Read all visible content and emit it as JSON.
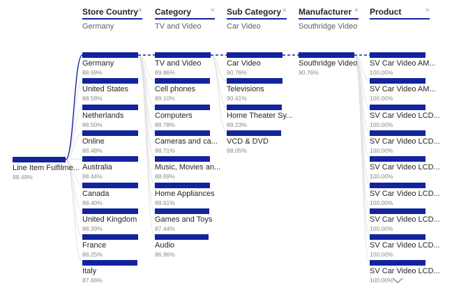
{
  "tree": {
    "root": {
      "label": "Line Item Fulfilme...",
      "value": "88.49%",
      "pct": 88.49
    },
    "columns": [
      {
        "title": "Store Country",
        "subtitle": "Germany",
        "close_glyph": "×",
        "nodes": [
          {
            "label": "Germany",
            "value": "88.69%",
            "pct": 88.69
          },
          {
            "label": "United States",
            "value": "88.58%",
            "pct": 88.58
          },
          {
            "label": "Netherlands",
            "value": "88.50%",
            "pct": 88.5
          },
          {
            "label": "Online",
            "value": "88.48%",
            "pct": 88.48
          },
          {
            "label": "Australia",
            "value": "88.44%",
            "pct": 88.44
          },
          {
            "label": "Canada",
            "value": "88.40%",
            "pct": 88.4
          },
          {
            "label": "United Kingdom",
            "value": "88.39%",
            "pct": 88.39
          },
          {
            "label": "France",
            "value": "88.25%",
            "pct": 88.25
          },
          {
            "label": "Italy",
            "value": "87.66%",
            "pct": 87.66
          }
        ]
      },
      {
        "title": "Category",
        "subtitle": "TV and Video",
        "close_glyph": "×",
        "nodes": [
          {
            "label": "TV and Video",
            "value": "89.86%",
            "pct": 89.86
          },
          {
            "label": "Cell phones",
            "value": "89.10%",
            "pct": 89.1
          },
          {
            "label": "Computers",
            "value": "88.78%",
            "pct": 88.78
          },
          {
            "label": "Cameras and ca...",
            "value": "88.71%",
            "pct": 88.71
          },
          {
            "label": "Music, Movies an...",
            "value": "88.69%",
            "pct": 88.69
          },
          {
            "label": "Home Appliances",
            "value": "88.61%",
            "pct": 88.61
          },
          {
            "label": "Games and Toys",
            "value": "87.44%",
            "pct": 87.44
          },
          {
            "label": "Audio",
            "value": "86.96%",
            "pct": 86.96
          }
        ]
      },
      {
        "title": "Sub Category",
        "subtitle": "Car Video",
        "close_glyph": "×",
        "nodes": [
          {
            "label": "Car Video",
            "value": "90.76%",
            "pct": 90.76
          },
          {
            "label": "Televisions",
            "value": "90.41%",
            "pct": 90.41
          },
          {
            "label": "Home Theater Sy...",
            "value": "89.23%",
            "pct": 89.23
          },
          {
            "label": "VCD & DVD",
            "value": "88.05%",
            "pct": 88.05
          }
        ]
      },
      {
        "title": "Manufacturer",
        "subtitle": "Southridge Video",
        "close_glyph": "×",
        "nodes": [
          {
            "label": "Southridge Video",
            "value": "90.76%",
            "pct": 90.76
          }
        ]
      },
      {
        "title": "Product",
        "subtitle": "",
        "close_glyph": "×",
        "nodes": [
          {
            "label": "SV Car Video AM...",
            "value": "100.00%",
            "pct": 100.0
          },
          {
            "label": "SV Car Video AM...",
            "value": "100.00%",
            "pct": 100.0
          },
          {
            "label": "SV Car Video LCD...",
            "value": "100.00%",
            "pct": 100.0
          },
          {
            "label": "SV Car Video LCD...",
            "value": "100.00%",
            "pct": 100.0
          },
          {
            "label": "SV Car Video LCD...",
            "value": "100.00%",
            "pct": 100.0
          },
          {
            "label": "SV Car Video LCD...",
            "value": "100.00%",
            "pct": 100.0
          },
          {
            "label": "SV Car Video LCD...",
            "value": "100.00%",
            "pct": 100.0
          },
          {
            "label": "SV Car Video LCD...",
            "value": "100.00%",
            "pct": 100.0
          },
          {
            "label": "SV Car Video LCD...",
            "value": "100.00%",
            "pct": 100.0
          }
        ]
      }
    ]
  },
  "colors": {
    "bar": "#12239E",
    "selected_path": "#12239E",
    "connector": "#E2E2E2",
    "title_text": "#252423",
    "muted_text": "#605E5C"
  }
}
